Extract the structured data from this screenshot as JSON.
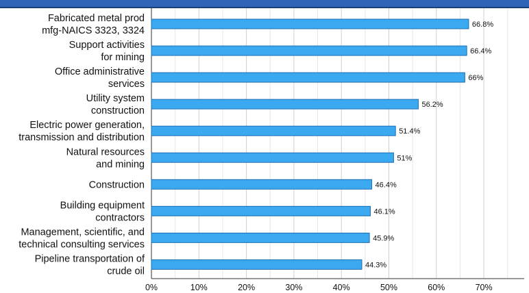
{
  "chart_data": {
    "type": "bar",
    "orientation": "horizontal",
    "title": "",
    "xlabel": "",
    "ylabel": "",
    "xlim": [
      0,
      78
    ],
    "x_ticks": [
      "0%",
      "10%",
      "20%",
      "30%",
      "40%",
      "50%",
      "60%",
      "70%"
    ],
    "grid": true,
    "bar_color": "#3aa9f0",
    "bar_edge_color": "#1f6fb5",
    "categories": [
      [
        "Fabricated metal prod",
        "mfg-NAICS 3323, 3324"
      ],
      [
        "Support activities",
        "for mining"
      ],
      [
        "Office administrative",
        "services"
      ],
      [
        "Utility system",
        "construction"
      ],
      [
        "Electric power generation,",
        "transmission and distribution"
      ],
      [
        "Natural resources",
        "and mining"
      ],
      [
        "Construction"
      ],
      [
        "Building equipment",
        "contractors"
      ],
      [
        "Management, scientific, and",
        "technical consulting services"
      ],
      [
        "Pipeline transportation of",
        "crude oil"
      ]
    ],
    "values": [
      66.8,
      66.4,
      66,
      56.2,
      51.4,
      51,
      46.4,
      46.1,
      45.9,
      44.3
    ],
    "value_labels": [
      "66.8%",
      "66.4%",
      "66%",
      "56.2%",
      "51.4%",
      "51%",
      "46.4%",
      "46.1%",
      "45.9%",
      "44.3%"
    ]
  }
}
